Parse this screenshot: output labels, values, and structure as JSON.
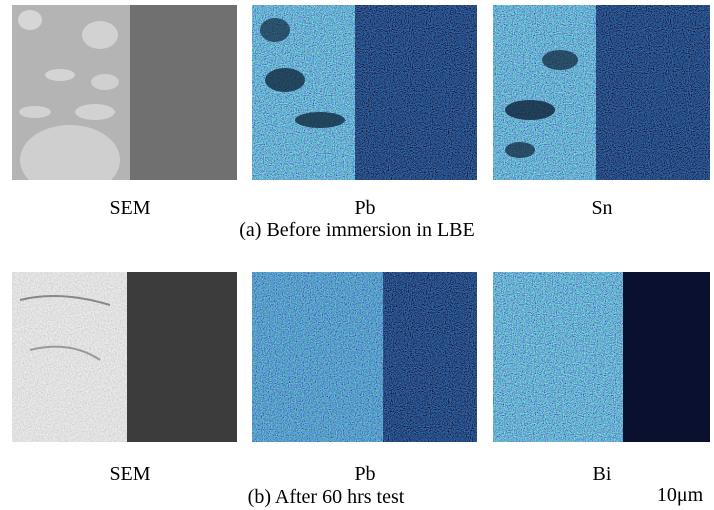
{
  "rows": [
    {
      "labels": [
        "SEM",
        "Pb",
        "Sn"
      ],
      "caption": "(a) Before immersion in LBE"
    },
    {
      "labels": [
        "SEM",
        "Pb",
        "Bi"
      ],
      "caption": "(b) After 60 hrs test"
    }
  ],
  "scale_bar": "10μm"
}
